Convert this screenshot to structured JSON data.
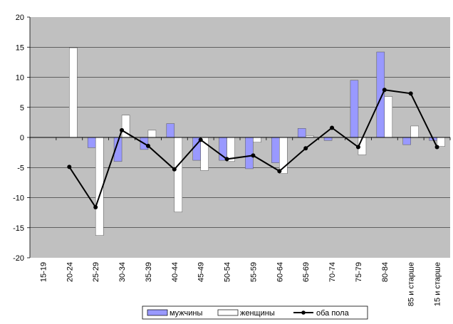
{
  "chart_data": {
    "type": "bar",
    "categories": [
      "15-19",
      "20-24",
      "25-29",
      "30-34",
      "35-39",
      "40-44",
      "45-49",
      "50-54",
      "55-59",
      "60-64",
      "65-69",
      "70-74",
      "75-79",
      "80-84",
      "85 и старше",
      "15 и старше"
    ],
    "series": [
      {
        "name": "мужчины",
        "kind": "bar",
        "color": "#9999ff",
        "values": [
          0,
          0,
          -1.7,
          -4.0,
          -2.0,
          2.3,
          -3.8,
          -3.8,
          -5.2,
          -4.2,
          1.5,
          -0.5,
          9.5,
          14.2,
          -1.2,
          -0.5
        ]
      },
      {
        "name": "женщины",
        "kind": "bar",
        "color": "#ffffff",
        "values": [
          0,
          14.9,
          -16.3,
          3.7,
          1.2,
          -12.4,
          -5.5,
          -4.0,
          -0.8,
          -6.0,
          0.3,
          0,
          -2.9,
          6.8,
          1.9,
          -1.5
        ]
      },
      {
        "name": "оба пола",
        "kind": "line",
        "color": "#000000",
        "values": [
          null,
          -4.9,
          -11.6,
          1.2,
          -1.4,
          -5.3,
          -0.4,
          -3.6,
          -3.0,
          -5.6,
          -1.8,
          1.6,
          -1.6,
          7.9,
          7.3,
          -1.6
        ]
      }
    ],
    "yticks": [
      "20",
      "15",
      "10",
      "5",
      "0",
      "-5",
      "-10",
      "-15",
      "-20"
    ],
    "ylim": [
      -20,
      20
    ],
    "grid": true,
    "legend": "bottom"
  }
}
